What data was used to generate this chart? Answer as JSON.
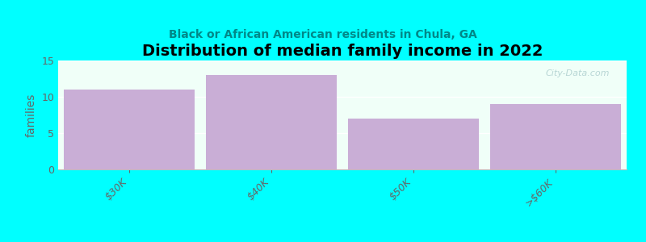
{
  "title": "Distribution of median family income in 2022",
  "subtitle": "Black or African American residents in Chula, GA",
  "categories": [
    "$30K",
    "$40K",
    "$50K",
    ">$60K"
  ],
  "values": [
    11,
    13,
    7,
    9
  ],
  "bar_color": "#c9aed6",
  "background_color": "#00ffff",
  "plot_bg_color": "#f0fff8",
  "ylabel": "families",
  "ylim": [
    0,
    15
  ],
  "yticks": [
    0,
    5,
    10,
    15
  ],
  "title_fontsize": 14,
  "subtitle_fontsize": 10,
  "tick_fontsize": 9,
  "ylabel_fontsize": 10,
  "watermark": "City-Data.com",
  "bar_width": 0.92
}
